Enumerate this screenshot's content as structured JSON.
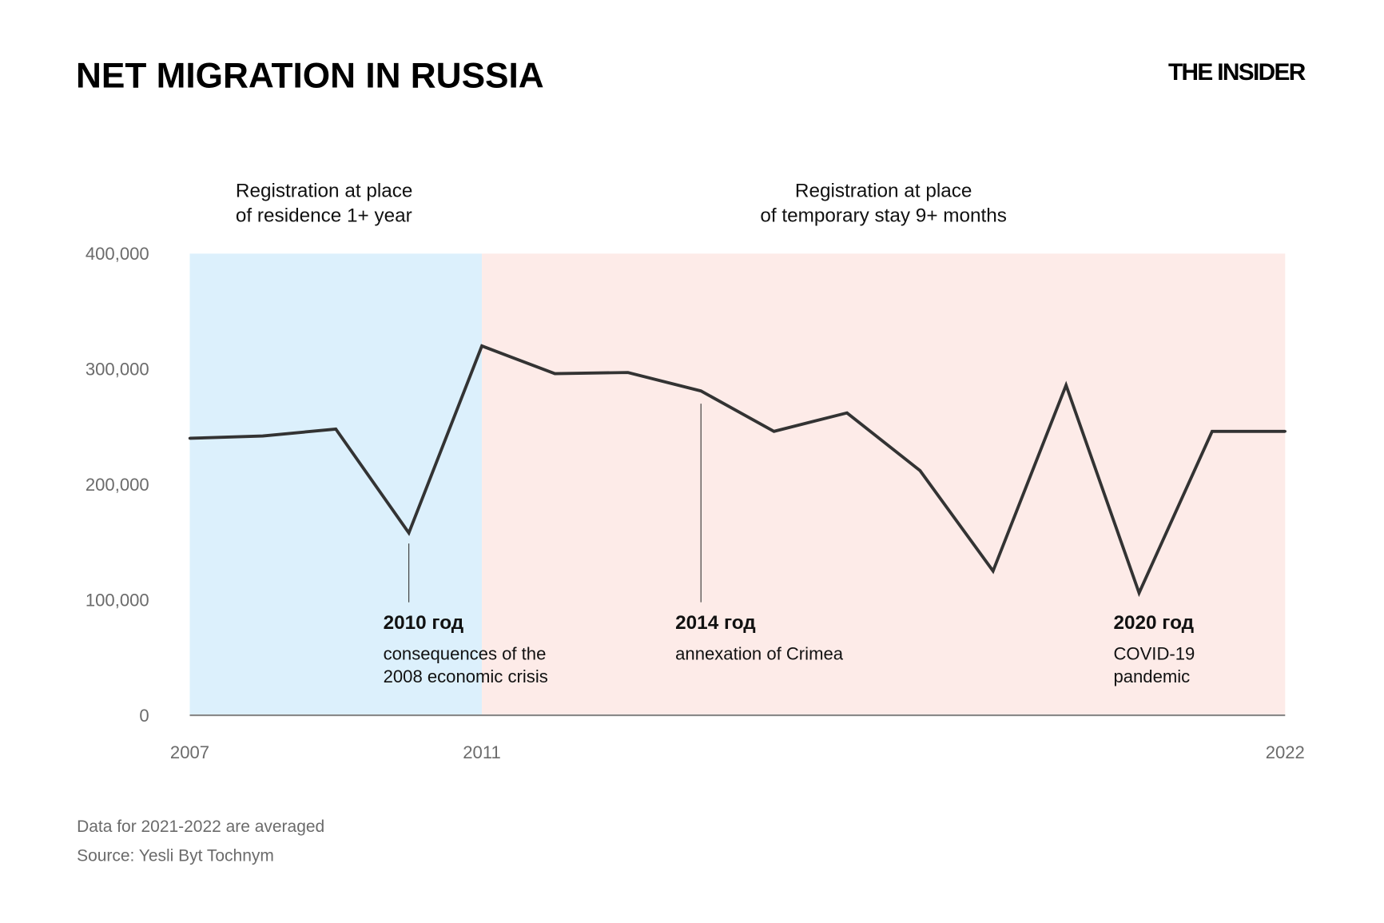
{
  "title": "NET MIGRATION IN RUSSIA",
  "logo": "THE INSIDER",
  "footnote": "Data for 2021-2022 are averaged",
  "source": "Source: Yesli Byt Tochnym",
  "chart_data": {
    "type": "line",
    "title": "NET MIGRATION IN RUSSIA",
    "x": [
      2007,
      2008,
      2009,
      2010,
      2011,
      2012,
      2013,
      2014,
      2015,
      2016,
      2017,
      2018,
      2019,
      2020,
      2021,
      2022
    ],
    "series": [
      {
        "values": [
          240000,
          242000,
          248000,
          158000,
          320000,
          296000,
          297000,
          281000,
          246000,
          262000,
          212000,
          125000,
          286000,
          106000,
          246000,
          246000
        ]
      }
    ],
    "xlim": [
      2007,
      2022
    ],
    "ylim": [
      0,
      400000
    ],
    "x_ticks": [
      "2007",
      "2011",
      "2022"
    ],
    "y_ticks": [
      "0",
      "100,000",
      "200,000",
      "300,000",
      "400,000"
    ],
    "grid": false,
    "line_color": "#333333",
    "regions": [
      {
        "from": 2007,
        "to": 2011,
        "color": "#dcf0fc",
        "label_lines": [
          "Registration at place",
          "of residence 1+ year"
        ]
      },
      {
        "from": 2011,
        "to": 2022,
        "color": "#fdebe8",
        "label_lines": [
          "Registration at place",
          "of temporary stay 9+ months"
        ]
      }
    ],
    "annotations": [
      {
        "x": 2010,
        "heading": "2010 год",
        "lines": [
          "consequences of the",
          "2008 economic crisis"
        ]
      },
      {
        "x": 2014,
        "heading": "2014 год",
        "lines": [
          "annexation of Crimea"
        ]
      },
      {
        "x": 2020,
        "heading": "2020 год",
        "lines": [
          "COVID-19",
          "pandemic"
        ]
      }
    ]
  }
}
